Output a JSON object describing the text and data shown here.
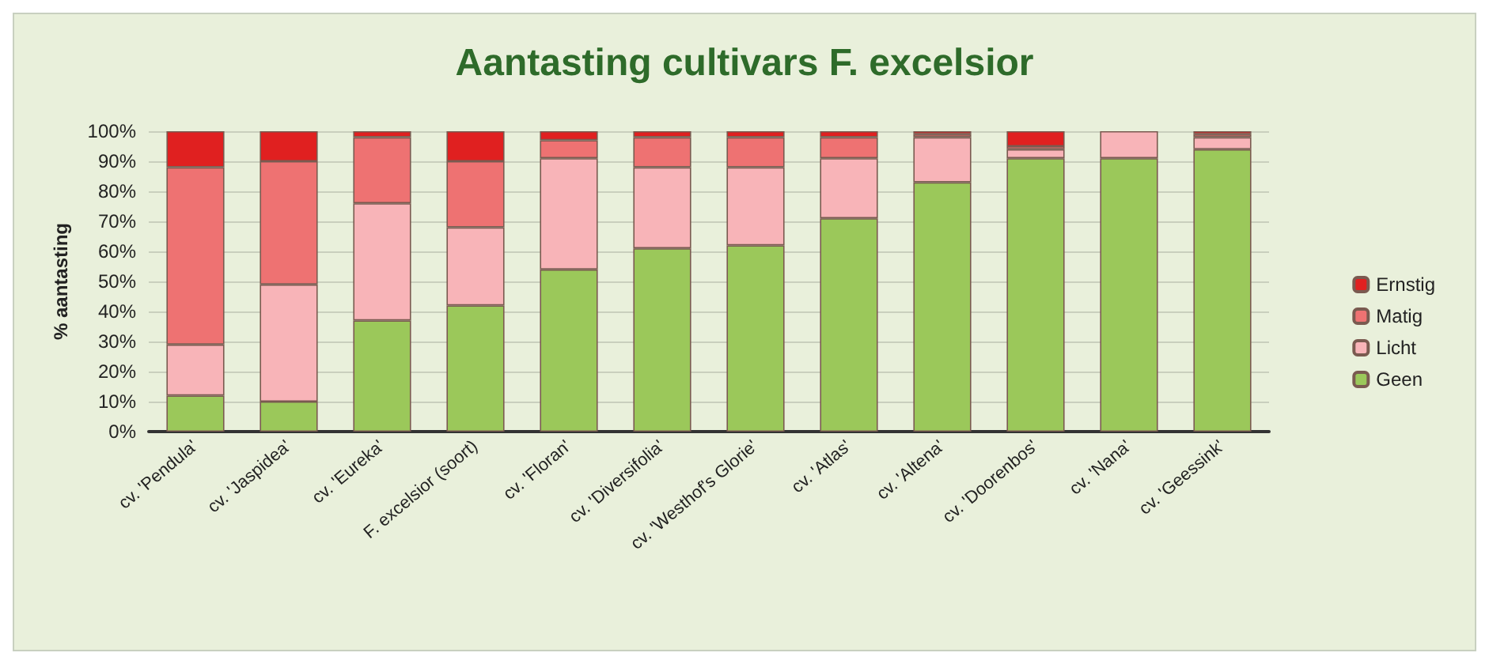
{
  "chart_data": {
    "type": "bar",
    "title": "Aantasting cultivars F. excelsior",
    "ylabel": "% aantasting",
    "categories": [
      "cv. 'Pendula'",
      "cv. 'Jaspidea'",
      "cv. 'Eureka'",
      "F. excelsior (soort)",
      "cv. 'Floran'",
      "cv. 'Diversifolia'",
      "cv. 'Westhof's Glorie'",
      "cv. 'Atlas'",
      "cv. 'Altena'",
      "cv. 'Doorenbos'",
      "cv. 'Nana'",
      "cv. 'Geessink'"
    ],
    "stacked": true,
    "series": [
      {
        "name": "Geen",
        "color": "#9bc85a",
        "values": [
          12,
          10,
          37,
          42,
          54,
          61,
          62,
          71,
          83,
          91,
          91,
          94
        ]
      },
      {
        "name": "Licht",
        "color": "#f8b4b8",
        "values": [
          17,
          39,
          39,
          26,
          37,
          27,
          26,
          20,
          15,
          3,
          9,
          4
        ]
      },
      {
        "name": "Matig",
        "color": "#ee7272",
        "values": [
          59,
          41,
          22,
          22,
          6,
          10,
          10,
          7,
          1,
          1,
          0,
          1
        ]
      },
      {
        "name": "Ernstig",
        "color": "#e02020",
        "values": [
          12,
          10,
          2,
          10,
          3,
          2,
          2,
          2,
          1,
          5,
          0,
          1
        ]
      }
    ],
    "ylim": [
      0,
      100
    ],
    "yticks": [
      {
        "value": 0,
        "label": "0%"
      },
      {
        "value": 10,
        "label": "10%"
      },
      {
        "value": 20,
        "label": "20%"
      },
      {
        "value": 30,
        "label": "30%"
      },
      {
        "value": 40,
        "label": "40%"
      },
      {
        "value": 50,
        "label": "50%"
      },
      {
        "value": 60,
        "label": "60%"
      },
      {
        "value": 70,
        "label": "70%"
      },
      {
        "value": 80,
        "label": "80%"
      },
      {
        "value": 90,
        "label": "90%"
      },
      {
        "value": 100,
        "label": "100%"
      }
    ],
    "grid": "y",
    "legend": "right"
  }
}
